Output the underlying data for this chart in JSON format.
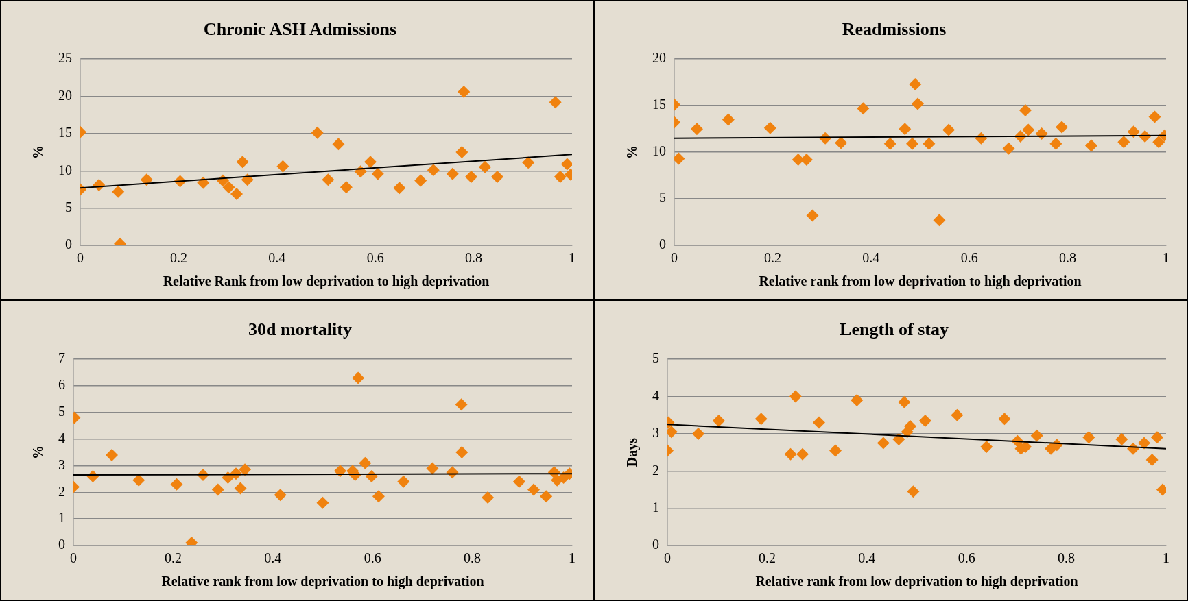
{
  "chart_data": [
    {
      "type": "scatter",
      "title": "Chronic ASH Admissions",
      "xlabel": "Relative Rank from low deprivation to high deprivation",
      "ylabel": "%",
      "xlim": [
        0,
        1
      ],
      "xticks": [
        0,
        0.2,
        0.4,
        0.6,
        0.8,
        1
      ],
      "ylim": [
        0,
        25
      ],
      "yticks": [
        0,
        5,
        10,
        15,
        20,
        25
      ],
      "grid": "y",
      "legend": false,
      "marker": "diamond",
      "series": [
        {
          "color": "#f0820f",
          "x": [
            0,
            0,
            0.038,
            0.077,
            0.081,
            0.135,
            0.203,
            0.25,
            0.29,
            0.302,
            0.318,
            0.33,
            0.34,
            0.412,
            0.482,
            0.504,
            0.525,
            0.541,
            0.57,
            0.59,
            0.605,
            0.649,
            0.692,
            0.718,
            0.757,
            0.78,
            0.776,
            0.795,
            0.823,
            0.848,
            0.911,
            0.966,
            0.976,
            0.99,
            0.997
          ],
          "values": [
            7.5,
            15.2,
            8.1,
            7.2,
            0.2,
            8.8,
            8.6,
            8.4,
            8.7,
            7.8,
            6.9,
            11.2,
            8.8,
            10.6,
            15.1,
            8.8,
            13.6,
            7.8,
            9.9,
            11.2,
            9.6,
            7.7,
            8.7,
            10.1,
            9.6,
            20.6,
            12.5,
            9.2,
            10.5,
            9.2,
            11.1,
            19.2,
            9.2,
            10.9,
            9.5
          ]
        },
        {
          "type": "line",
          "color": "#000000",
          "marker": "none",
          "x": [
            0,
            1
          ],
          "values": [
            7.7,
            12.2
          ]
        }
      ]
    },
    {
      "type": "scatter",
      "title": "Readmissions",
      "xlabel": "Relative rank from low deprivation to high deprivation",
      "ylabel": "%",
      "xlim": [
        0,
        1
      ],
      "xticks": [
        0,
        0.2,
        0.4,
        0.6,
        0.8,
        1
      ],
      "ylim": [
        0,
        20
      ],
      "yticks": [
        0,
        5,
        10,
        15,
        20
      ],
      "grid": "y",
      "legend": false,
      "marker": "diamond",
      "series": [
        {
          "color": "#f0820f",
          "x": [
            0,
            0,
            0.009,
            0.046,
            0.11,
            0.195,
            0.252,
            0.269,
            0.281,
            0.307,
            0.339,
            0.384,
            0.439,
            0.469,
            0.484,
            0.49,
            0.495,
            0.518,
            0.539,
            0.558,
            0.624,
            0.68,
            0.704,
            0.714,
            0.72,
            0.747,
            0.776,
            0.788,
            0.848,
            0.914,
            0.934,
            0.957,
            0.977,
            0.985,
            0.997
          ],
          "values": [
            13.2,
            15.1,
            9.3,
            12.5,
            13.5,
            12.6,
            9.2,
            9.2,
            3.2,
            11.5,
            11.0,
            14.7,
            10.9,
            12.5,
            10.9,
            17.3,
            15.2,
            10.9,
            2.7,
            12.4,
            11.5,
            10.4,
            11.7,
            14.5,
            12.4,
            12.0,
            10.9,
            12.7,
            10.7,
            11.1,
            12.2,
            11.7,
            13.8,
            11.1,
            11.8
          ]
        },
        {
          "type": "line",
          "color": "#000000",
          "marker": "none",
          "x": [
            0,
            1
          ],
          "values": [
            11.5,
            11.8
          ]
        }
      ]
    },
    {
      "type": "scatter",
      "title": "30d mortality",
      "xlabel": "Relative rank from low deprivation to high deprivation",
      "ylabel": "%",
      "xlim": [
        0,
        1
      ],
      "xticks": [
        0,
        0.2,
        0.4,
        0.6,
        0.8,
        1
      ],
      "ylim": [
        0,
        7
      ],
      "yticks": [
        0,
        1,
        2,
        3,
        4,
        5,
        6,
        7
      ],
      "grid": "y",
      "legend": false,
      "marker": "diamond",
      "series": [
        {
          "color": "#f0820f",
          "x": [
            0,
            0.002,
            0.039,
            0.077,
            0.131,
            0.207,
            0.237,
            0.26,
            0.29,
            0.31,
            0.326,
            0.335,
            0.344,
            0.415,
            0.5,
            0.535,
            0.56,
            0.565,
            0.571,
            0.585,
            0.598,
            0.612,
            0.662,
            0.72,
            0.76,
            0.779,
            0.778,
            0.831,
            0.894,
            0.923,
            0.948,
            0.964,
            0.97,
            0.983,
            0.995
          ],
          "values": [
            2.2,
            4.8,
            2.6,
            3.4,
            2.45,
            2.3,
            0.1,
            2.65,
            2.1,
            2.55,
            2.7,
            2.15,
            2.85,
            1.9,
            1.6,
            2.8,
            2.8,
            2.65,
            6.3,
            3.1,
            2.6,
            1.85,
            2.4,
            2.9,
            2.75,
            3.5,
            5.3,
            1.8,
            2.4,
            2.1,
            1.85,
            2.75,
            2.45,
            2.55,
            2.7
          ]
        },
        {
          "type": "line",
          "color": "#000000",
          "marker": "none",
          "x": [
            0,
            1
          ],
          "values": [
            2.65,
            2.7
          ]
        }
      ]
    },
    {
      "type": "scatter",
      "title": "Length of stay",
      "xlabel": "Relative rank from low deprivation to high deprivation",
      "ylabel": "Days",
      "xlim": [
        0,
        1
      ],
      "xticks": [
        0,
        0.2,
        0.4,
        0.6,
        0.8,
        1
      ],
      "ylim": [
        0,
        5
      ],
      "yticks": [
        0,
        1,
        2,
        3,
        4,
        5
      ],
      "grid": "y",
      "legend": false,
      "marker": "diamond",
      "series": [
        {
          "color": "#f0820f",
          "x": [
            0,
            0.002,
            0.008,
            0.062,
            0.103,
            0.188,
            0.247,
            0.257,
            0.271,
            0.304,
            0.337,
            0.38,
            0.433,
            0.464,
            0.475,
            0.481,
            0.487,
            0.493,
            0.517,
            0.581,
            0.64,
            0.676,
            0.702,
            0.709,
            0.718,
            0.741,
            0.769,
            0.781,
            0.845,
            0.911,
            0.934,
            0.956,
            0.972,
            0.982,
            0.993
          ],
          "values": [
            2.55,
            3.3,
            3.05,
            3.0,
            3.35,
            3.4,
            2.45,
            4.0,
            2.45,
            3.3,
            2.55,
            3.9,
            2.75,
            2.85,
            3.85,
            3.05,
            3.2,
            1.45,
            3.35,
            3.5,
            2.65,
            3.4,
            2.8,
            2.6,
            2.65,
            2.95,
            2.6,
            2.7,
            2.9,
            2.85,
            2.6,
            2.75,
            2.3,
            2.9,
            1.5
          ]
        },
        {
          "type": "line",
          "color": "#000000",
          "marker": "none",
          "x": [
            0,
            1
          ],
          "values": [
            3.25,
            2.6
          ]
        }
      ]
    }
  ]
}
